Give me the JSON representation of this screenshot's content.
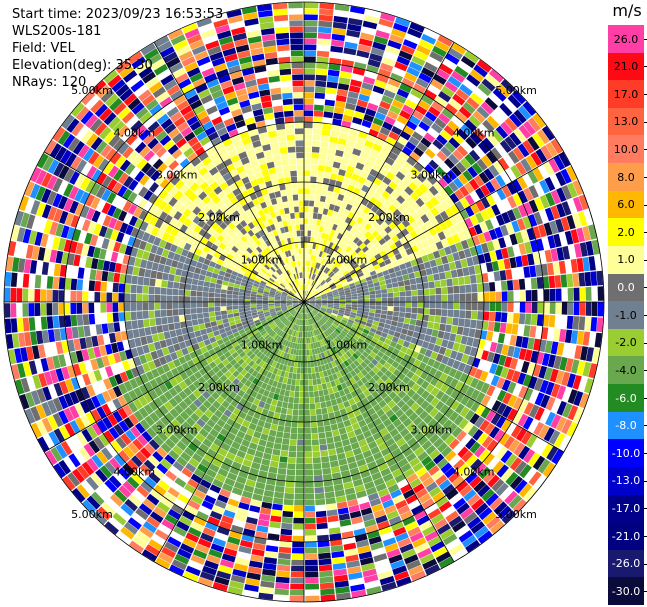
{
  "header": {
    "start_time": "Start time: 2023/09/23 16:53:53",
    "station": "WLS200s-181",
    "field": "Field: VEL",
    "elevation": "Elevation(deg): 35.30",
    "nrays": "NRays: 120"
  },
  "colorbar": {
    "unit": "m/s",
    "levels": [
      {
        "label": "26.0",
        "color": "#ff3fa5"
      },
      {
        "label": "21.0",
        "color": "#ff0a14"
      },
      {
        "label": "17.0",
        "color": "#ff3c28"
      },
      {
        "label": "13.0",
        "color": "#ff6440"
      },
      {
        "label": "10.0",
        "color": "#ff7c60"
      },
      {
        "label": "8.0",
        "color": "#ff9e4a"
      },
      {
        "label": "6.0",
        "color": "#ffb700"
      },
      {
        "label": "2.0",
        "color": "#ffff00"
      },
      {
        "label": "1.0",
        "color": "#ffff9a"
      },
      {
        "label": "0.0",
        "color": "#6f6f6f"
      },
      {
        "label": "-1.0",
        "color": "#708090"
      },
      {
        "label": "-2.0",
        "color": "#9acd32"
      },
      {
        "label": "-4.0",
        "color": "#6aa84f"
      },
      {
        "label": "-6.0",
        "color": "#228b22"
      },
      {
        "label": "-8.0",
        "color": "#1e90ff"
      },
      {
        "label": "-10.0",
        "color": "#0000ff"
      },
      {
        "label": "-13.0",
        "color": "#0000cd"
      },
      {
        "label": "-17.0",
        "color": "#00008b"
      },
      {
        "label": "-21.0",
        "color": "#000080"
      },
      {
        "label": "-26.0",
        "color": "#191970"
      },
      {
        "label": "-30.0",
        "color": "#0b0b3b"
      }
    ]
  },
  "chart_data": {
    "type": "heatmap",
    "title": "",
    "field": "VEL",
    "units": "m/s",
    "n_rays": 120,
    "elevation_deg": 35.3,
    "range_rings": [
      {
        "range_km": 1.0,
        "label": "1.00km"
      },
      {
        "range_km": 2.0,
        "label": "2.00km"
      },
      {
        "range_km": 3.0,
        "label": "3.00km"
      },
      {
        "range_km": 4.0,
        "label": "4.00km"
      },
      {
        "range_km": 5.0,
        "label": "5.00km"
      }
    ],
    "ring_label_azimuths_deg": [
      -45,
      45,
      135,
      225
    ],
    "max_range_km": 5.0,
    "velocity_regions": [
      {
        "from_km": 0.0,
        "to_km": 3.0,
        "azimuth_from_deg": -65,
        "azimuth_to_deg": 70,
        "value": 1.5
      },
      {
        "from_km": 0.0,
        "to_km": 3.0,
        "azimuth_from_deg": 70,
        "azimuth_to_deg": 115,
        "value": -0.5
      },
      {
        "from_km": 0.0,
        "to_km": 3.4,
        "azimuth_from_deg": 115,
        "azimuth_to_deg": 245,
        "value": -2.5
      },
      {
        "from_km": 0.0,
        "to_km": 3.0,
        "azimuth_from_deg": 245,
        "azimuth_to_deg": 295,
        "value": -0.5
      },
      {
        "from_km": 3.0,
        "to_km": 5.0,
        "azimuth_from_deg": 0,
        "azimuth_to_deg": 360,
        "value": "noise"
      }
    ]
  }
}
